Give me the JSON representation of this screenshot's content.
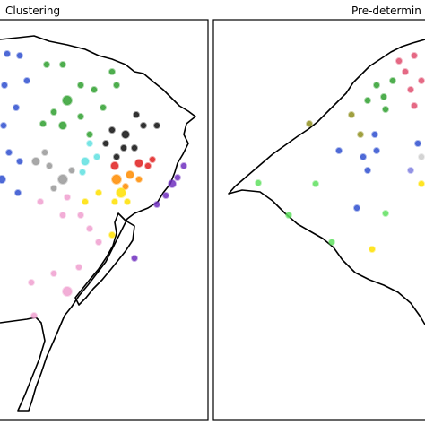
{
  "panels": [
    {
      "title": "Clustering"
    },
    {
      "title": "Pre-determin"
    }
  ]
}
